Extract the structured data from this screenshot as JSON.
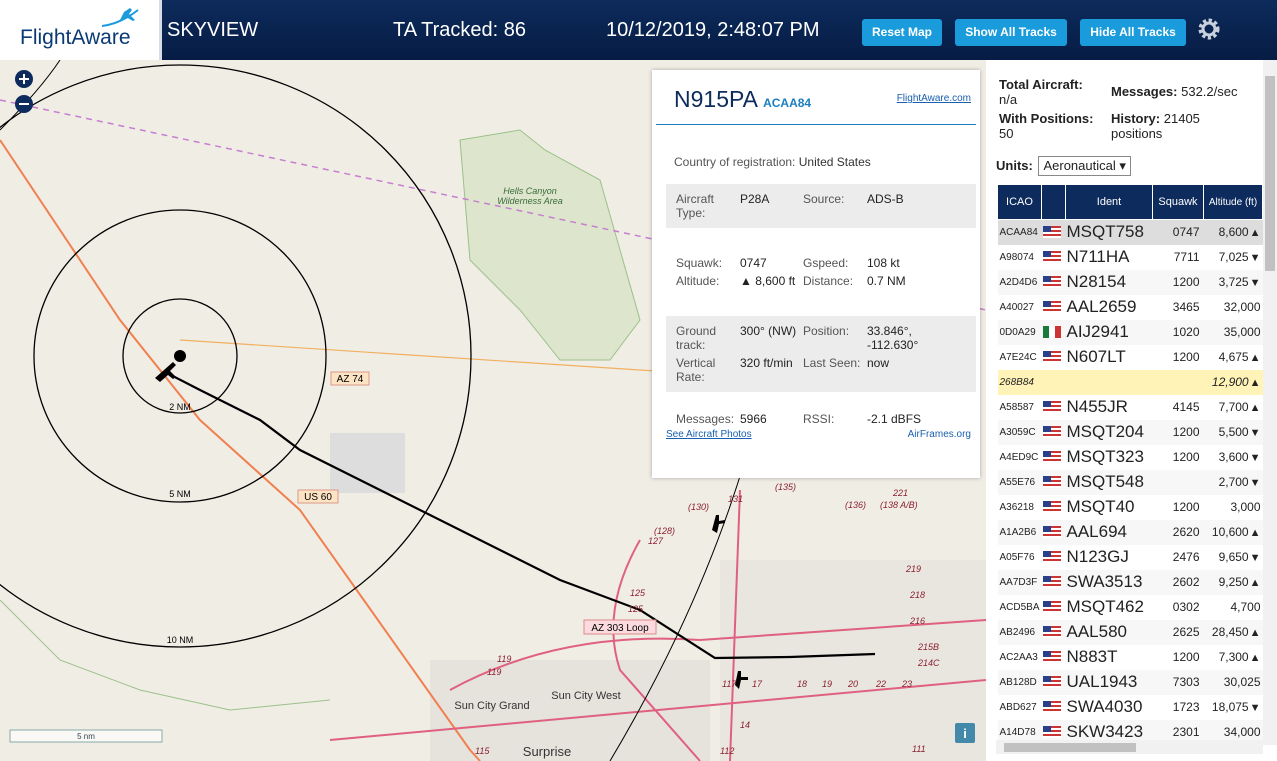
{
  "header": {
    "logo": "FlightAware",
    "app": "SKYVIEW",
    "tracked": "TA Tracked: 86",
    "datetime": "10/12/2019, 2:48:07 PM",
    "buttons": [
      "Reset Map",
      "Show All Tracks",
      "Hide All Tracks"
    ]
  },
  "map": {
    "rings": [
      "2 NM",
      "5 NM",
      "10 NM"
    ],
    "roads": [
      "AZ 74",
      "US 60",
      "AZ 303 Loop"
    ],
    "places": [
      "Hells Canyon Wilderness Area",
      "Sun City West",
      "Sun City Grand",
      "Surprise"
    ],
    "routes": [
      "131",
      "(135)",
      "(130)",
      "(136)",
      "(138 A/B)",
      "221",
      "(128)",
      "127",
      "125",
      "125",
      "219",
      "218",
      "216",
      "214C",
      "215B",
      "119",
      "119",
      "117",
      "17",
      "18",
      "19",
      "20",
      "22",
      "23",
      "14",
      "115",
      "112",
      "111"
    ],
    "scale": "5 nm"
  },
  "info": {
    "registration": "N915PA",
    "icao": "ACAA84",
    "link": "FlightAware.com",
    "country_label": "Country of registration:",
    "country": "United States",
    "groups": [
      [
        [
          "Aircraft Type:",
          "P28A",
          "Source:",
          "ADS-B"
        ]
      ],
      [
        [
          "Squawk:",
          "0747",
          "Gspeed:",
          "108 kt"
        ],
        [
          "Altitude:",
          "▲ 8,600 ft",
          "Distance:",
          "0.7 NM"
        ]
      ],
      [
        [
          "Ground track:",
          "300° (NW)",
          "Position:",
          "33.846°, -112.630°"
        ],
        [
          "Vertical Rate:",
          "320 ft/min",
          "Last Seen:",
          "now"
        ]
      ],
      [
        [
          "Messages:",
          "5966",
          "RSSI:",
          "-2.1 dBFS"
        ]
      ]
    ],
    "photos": "See Aircraft Photos",
    "airframes": "AirFrames.org"
  },
  "stats": {
    "total_label": "Total Aircraft:",
    "total": "n/a",
    "messages_label": "Messages:",
    "messages": "532.2/sec",
    "positions_label": "With Positions:",
    "positions": "50",
    "history_label": "History:",
    "history": "21405 positions",
    "units_label": "Units:",
    "units": "Aeronautical"
  },
  "table": {
    "columns": [
      "ICAO",
      "Ident",
      "Squawk",
      "Altitude (ft)"
    ],
    "rows": [
      {
        "icao": "ACAA84",
        "flag": "us",
        "ident": "MSQT758",
        "squawk": "0747",
        "altitude": "8,600",
        "trend": "▲",
        "selected": true
      },
      {
        "icao": "A98074",
        "flag": "us",
        "ident": "N711HA",
        "squawk": "7711",
        "altitude": "7,025",
        "trend": "▼"
      },
      {
        "icao": "A2D4D6",
        "flag": "us",
        "ident": "N28154",
        "squawk": "1200",
        "altitude": "3,725",
        "trend": "▼"
      },
      {
        "icao": "A40027",
        "flag": "us",
        "ident": "AAL2659",
        "squawk": "3465",
        "altitude": "32,000"
      },
      {
        "icao": "0D0A29",
        "flag": "mx",
        "ident": "AIJ2941",
        "squawk": "1020",
        "altitude": "35,000"
      },
      {
        "icao": "A7E24C",
        "flag": "us",
        "ident": "N607LT",
        "squawk": "1200",
        "altitude": "4,675",
        "trend": "▲"
      },
      {
        "icao": "268B84",
        "altitude": "12,900",
        "trend": "▲",
        "highlight": true
      },
      {
        "icao": "A58587",
        "flag": "us",
        "ident": "N455JR",
        "squawk": "4145",
        "altitude": "7,700",
        "trend": "▲"
      },
      {
        "icao": "A3059C",
        "flag": "us",
        "ident": "MSQT204",
        "squawk": "1200",
        "altitude": "5,500",
        "trend": "▼"
      },
      {
        "icao": "A4ED9C",
        "flag": "us",
        "ident": "MSQT323",
        "squawk": "1200",
        "altitude": "3,600",
        "trend": "▼"
      },
      {
        "icao": "A55E76",
        "flag": "us",
        "ident": "MSQT548",
        "altitude": "2,700",
        "trend": "▼"
      },
      {
        "icao": "A36218",
        "flag": "us",
        "ident": "MSQT40",
        "squawk": "1200",
        "altitude": "3,000"
      },
      {
        "icao": "A1A2B6",
        "flag": "us",
        "ident": "AAL694",
        "squawk": "2620",
        "altitude": "10,600",
        "trend": "▲"
      },
      {
        "icao": "A05F76",
        "flag": "us",
        "ident": "N123GJ",
        "squawk": "2476",
        "altitude": "9,650",
        "trend": "▼"
      },
      {
        "icao": "AA7D3F",
        "flag": "us",
        "ident": "SWA3513",
        "squawk": "2602",
        "altitude": "9,250",
        "trend": "▲"
      },
      {
        "icao": "ACD5BA",
        "flag": "us",
        "ident": "MSQT462",
        "squawk": "0302",
        "altitude": "4,700"
      },
      {
        "icao": "AB2496",
        "flag": "us",
        "ident": "AAL580",
        "squawk": "2625",
        "altitude": "28,450",
        "trend": "▲"
      },
      {
        "icao": "AC2AA3",
        "flag": "us",
        "ident": "N883T",
        "squawk": "1200",
        "altitude": "7,300",
        "trend": "▲"
      },
      {
        "icao": "AB128D",
        "flag": "us",
        "ident": "UAL1943",
        "squawk": "7303",
        "altitude": "30,025"
      },
      {
        "icao": "ABD627",
        "flag": "us",
        "ident": "SWA4030",
        "squawk": "1723",
        "altitude": "18,075",
        "trend": "▼"
      },
      {
        "icao": "A14D78",
        "flag": "us",
        "ident": "SKW3423",
        "squawk": "2301",
        "altitude": "34,000"
      }
    ]
  }
}
